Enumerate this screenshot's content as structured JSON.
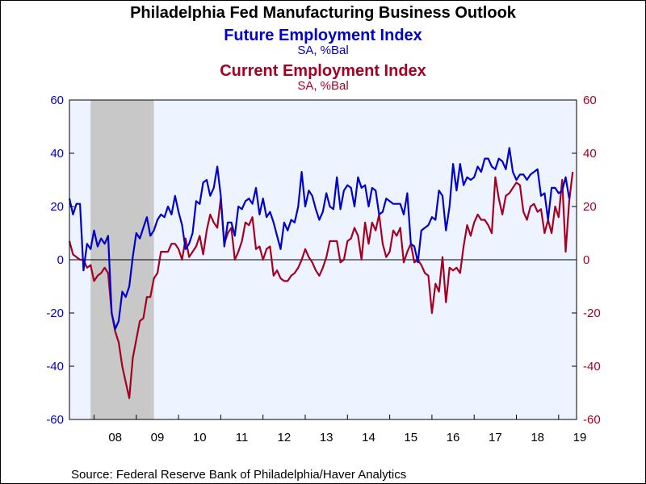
{
  "title": "Philadelphia Fed Manufacturing Business Outlook",
  "series_labels": {
    "future": "Future Employment Index",
    "future_unit": "SA, %Bal",
    "current": "Current Employment Index",
    "current_unit": "SA, %Bal"
  },
  "source": "Source:  Federal Reserve Bank of Philadelphia/Haver Analytics",
  "colors": {
    "future": "#0000cc",
    "current": "#a50021",
    "plot_bg": "#eef4ff",
    "recession": "#c8c8c8"
  },
  "chart_data": {
    "type": "line",
    "x_start": "2007-06",
    "frequency": "monthly",
    "x_tick_labels": [
      "08",
      "09",
      "10",
      "11",
      "12",
      "13",
      "14",
      "15",
      "16",
      "17",
      "18",
      "19"
    ],
    "y_left": {
      "min": -60,
      "max": 60,
      "ticks": [
        -60,
        -40,
        -20,
        0,
        20,
        40,
        60
      ]
    },
    "y_right": {
      "min": -60,
      "max": 60,
      "ticks": [
        -60,
        -40,
        -20,
        0,
        20,
        40,
        60
      ]
    },
    "recession_shading": {
      "start": "2007-12",
      "end": "2009-06"
    },
    "zero_line": true,
    "series": [
      {
        "name": "Future Employment Index",
        "axis": "left",
        "values": [
          23,
          17,
          21,
          21,
          -4,
          6,
          4,
          11,
          5,
          8,
          6,
          9,
          -20,
          -26,
          -23,
          -12,
          -14,
          -10,
          1,
          10,
          8,
          12,
          16,
          9,
          11,
          15,
          17,
          16,
          20,
          17,
          24,
          18,
          13,
          4,
          6,
          10,
          22,
          21,
          29,
          30,
          24,
          27,
          35,
          24,
          5,
          14,
          14,
          9,
          20,
          19,
          22,
          23,
          21,
          27,
          17,
          23,
          16,
          18,
          14,
          9,
          4,
          14,
          11,
          15,
          14,
          20,
          33,
          20,
          26,
          24,
          19,
          15,
          18,
          25,
          20,
          19,
          31,
          19,
          26,
          28,
          27,
          20,
          31,
          27,
          28,
          20,
          27,
          26,
          17,
          18,
          23,
          22,
          21,
          21,
          21,
          17,
          25,
          6,
          5,
          -1,
          11,
          12,
          13,
          16,
          15,
          26,
          24,
          11,
          20,
          36,
          26,
          36,
          28,
          31,
          30,
          31,
          35,
          33,
          38,
          38,
          35,
          34,
          38,
          37,
          34,
          42,
          33,
          30,
          32,
          32,
          30,
          32,
          33,
          34,
          24,
          25,
          15,
          27,
          27,
          25,
          26,
          31,
          23
        ]
      },
      {
        "name": "Current Employment Index",
        "axis": "right",
        "values": [
          7,
          2,
          1,
          0,
          0,
          -3,
          -2,
          -8,
          -6,
          -5,
          -3,
          -5,
          -20,
          -27,
          -31,
          -40,
          -46,
          -52,
          -37,
          -30,
          -23,
          -22,
          -14,
          -14,
          -7,
          -5,
          3,
          3,
          3,
          6,
          6,
          4,
          0,
          8,
          1,
          3,
          5,
          9,
          2,
          11,
          17,
          14,
          12,
          23,
          6,
          10,
          12,
          0,
          3,
          7,
          14,
          13,
          16,
          4,
          5,
          0,
          4,
          5,
          -6,
          -4,
          -7,
          -8,
          -8,
          -6,
          -5,
          -3,
          0,
          4,
          1,
          -1,
          -4,
          -6,
          -3,
          1,
          7,
          7,
          7,
          -1,
          0,
          7,
          8,
          12,
          9,
          0,
          14,
          6,
          14,
          11,
          17,
          6,
          1,
          3,
          11,
          9,
          12,
          -1,
          3,
          6,
          -1,
          0,
          -2,
          -5,
          -6,
          -20,
          -9,
          -12,
          1,
          -16,
          -3,
          -4,
          -3,
          -5,
          5,
          13,
          9,
          14,
          17,
          15,
          15,
          13,
          10,
          31,
          23,
          17,
          24,
          25,
          27,
          29,
          28,
          18,
          15,
          20,
          21,
          18,
          19,
          10,
          15,
          10,
          20,
          16,
          30,
          3,
          22,
          33
        ]
      }
    ]
  }
}
